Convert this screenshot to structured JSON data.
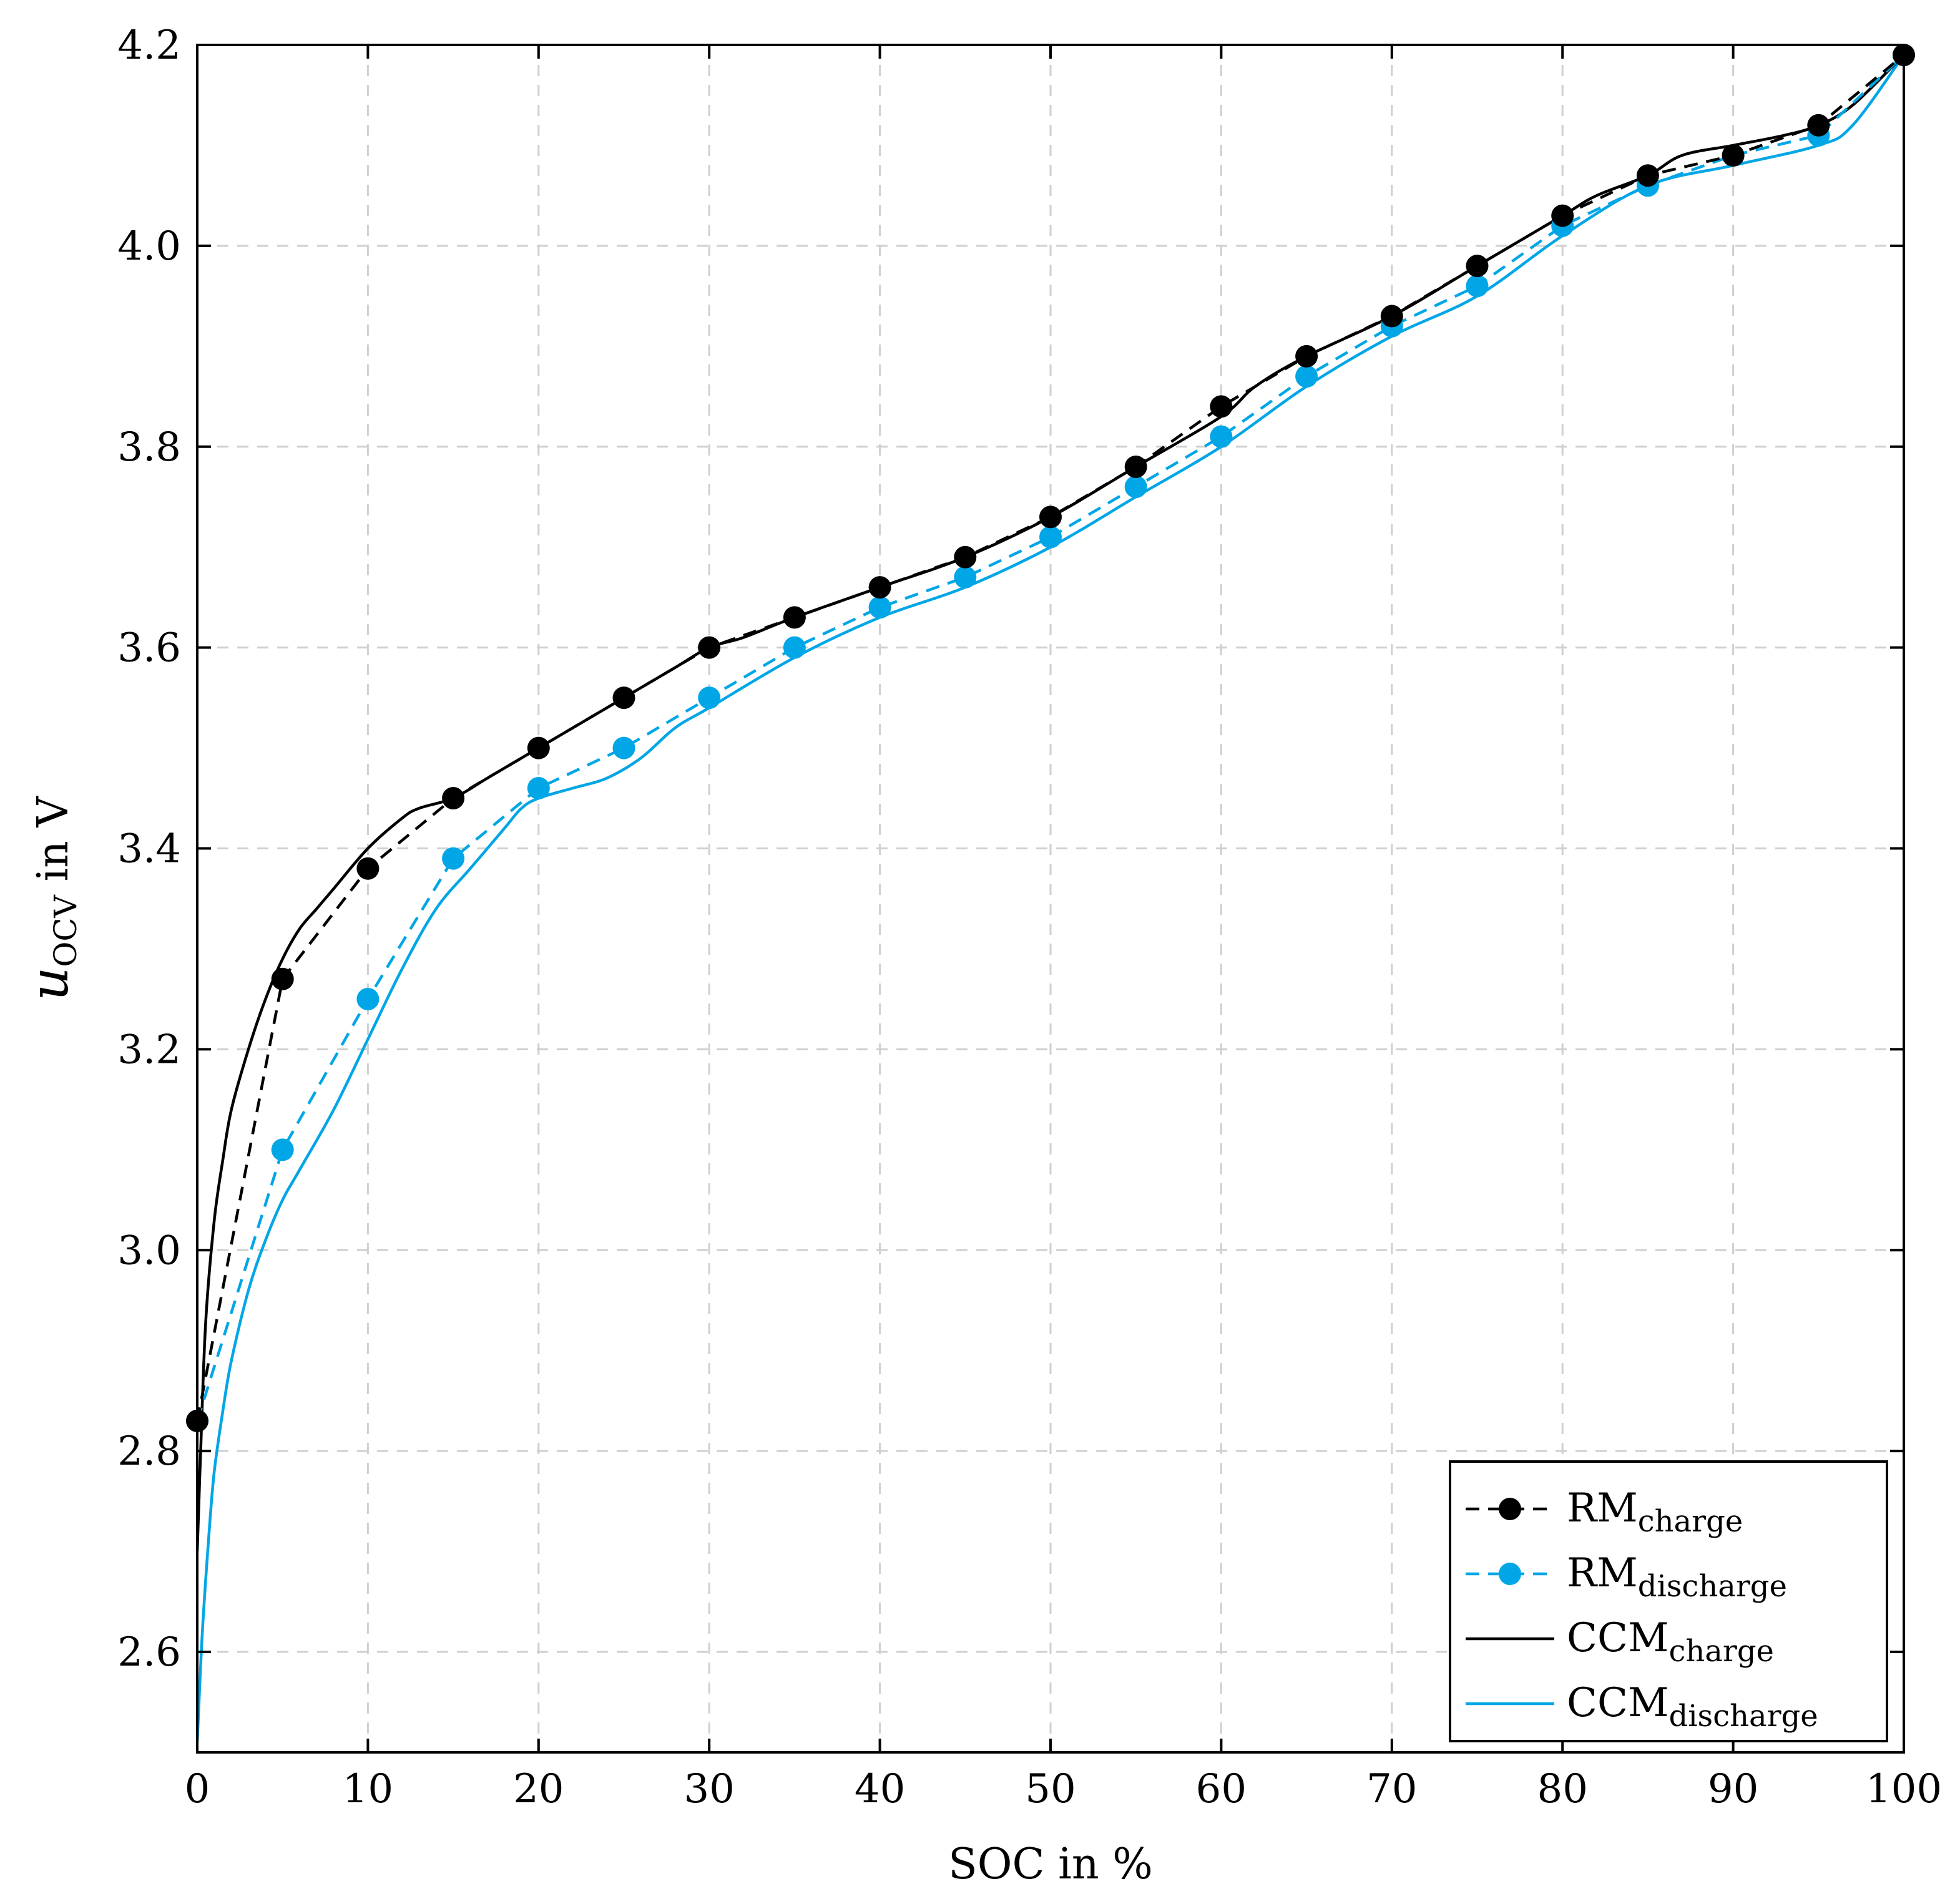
{
  "chart_data": {
    "type": "line",
    "title": "",
    "xlabel": "SOC in %",
    "ylabel": {
      "main": "u",
      "sub": "OCV",
      "suffix": " in V"
    },
    "xlim": [
      0,
      100
    ],
    "ylim": [
      2.5,
      4.2
    ],
    "xticks": [
      0,
      10,
      20,
      30,
      40,
      50,
      60,
      70,
      80,
      90,
      100
    ],
    "yticks": [
      2.6,
      2.8,
      3.0,
      3.2,
      3.4,
      3.6,
      3.8,
      4.0,
      4.2
    ],
    "xtick_labels": [
      "0",
      "10",
      "20",
      "30",
      "40",
      "50",
      "60",
      "70",
      "80",
      "90",
      "100"
    ],
    "ytick_labels": [
      "2.6",
      "2.8",
      "3.0",
      "3.2",
      "3.4",
      "3.6",
      "3.8",
      "4.0",
      "4.2"
    ],
    "grid": true,
    "legend_position": "bottom-right",
    "series": [
      {
        "name": "RM",
        "sub": "charge",
        "color": "#000000",
        "style": "dashed-markers",
        "x": [
          0,
          5,
          10,
          15,
          20,
          25,
          30,
          35,
          40,
          45,
          50,
          55,
          60,
          65,
          70,
          75,
          80,
          85,
          90,
          95,
          100
        ],
        "y": [
          2.83,
          3.27,
          3.38,
          3.45,
          3.5,
          3.55,
          3.6,
          3.63,
          3.66,
          3.69,
          3.73,
          3.78,
          3.84,
          3.89,
          3.93,
          3.98,
          4.03,
          4.07,
          4.09,
          4.12,
          4.19
        ]
      },
      {
        "name": "RM",
        "sub": "discharge",
        "color": "#00a6e6",
        "style": "dashed-markers",
        "x": [
          0,
          5,
          10,
          15,
          20,
          25,
          30,
          35,
          40,
          45,
          50,
          55,
          60,
          65,
          70,
          75,
          80,
          85,
          90,
          95,
          100
        ],
        "y": [
          2.83,
          3.1,
          3.25,
          3.39,
          3.46,
          3.5,
          3.55,
          3.6,
          3.64,
          3.67,
          3.71,
          3.76,
          3.81,
          3.87,
          3.92,
          3.96,
          4.02,
          4.06,
          4.09,
          4.11,
          4.19
        ]
      },
      {
        "name": "CCM",
        "sub": "charge",
        "color": "#000000",
        "style": "solid",
        "x": [
          0,
          0.2,
          0.5,
          1,
          1.5,
          2,
          3,
          4,
          5,
          6,
          7,
          8,
          10,
          12,
          13,
          15,
          17,
          19,
          20,
          22,
          25,
          28,
          30,
          32,
          35,
          40,
          45,
          50,
          55,
          60,
          62,
          65,
          70,
          75,
          80,
          82,
          85,
          87,
          90,
          93,
          95,
          97,
          100
        ],
        "y": [
          2.7,
          2.8,
          2.93,
          3.03,
          3.09,
          3.14,
          3.2,
          3.25,
          3.29,
          3.32,
          3.34,
          3.36,
          3.4,
          3.43,
          3.44,
          3.45,
          3.47,
          3.49,
          3.5,
          3.52,
          3.55,
          3.58,
          3.6,
          3.61,
          3.63,
          3.66,
          3.69,
          3.73,
          3.78,
          3.83,
          3.86,
          3.89,
          3.93,
          3.98,
          4.03,
          4.05,
          4.07,
          4.09,
          4.1,
          4.11,
          4.12,
          4.14,
          4.19
        ]
      },
      {
        "name": "CCM",
        "sub": "discharge",
        "color": "#00a6e6",
        "style": "solid",
        "x": [
          0,
          0.3,
          0.7,
          1,
          1.5,
          2,
          3,
          4,
          5,
          6,
          8,
          10,
          12,
          14,
          16,
          18,
          19,
          20,
          22,
          24,
          26,
          28,
          30,
          35,
          40,
          45,
          50,
          55,
          60,
          65,
          70,
          75,
          80,
          85,
          90,
          95,
          97,
          100
        ],
        "y": [
          2.51,
          2.62,
          2.72,
          2.78,
          2.84,
          2.89,
          2.96,
          3.01,
          3.05,
          3.08,
          3.14,
          3.21,
          3.28,
          3.34,
          3.38,
          3.42,
          3.44,
          3.45,
          3.46,
          3.47,
          3.49,
          3.52,
          3.54,
          3.59,
          3.63,
          3.66,
          3.7,
          3.75,
          3.8,
          3.86,
          3.91,
          3.95,
          4.01,
          4.06,
          4.08,
          4.1,
          4.12,
          4.19
        ]
      }
    ]
  }
}
